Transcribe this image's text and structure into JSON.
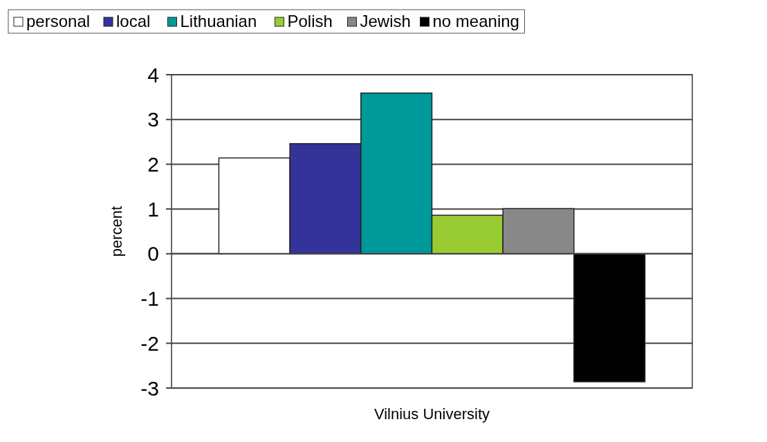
{
  "chart_data": {
    "type": "bar",
    "categories": [
      "Vilnius University"
    ],
    "ylabel": "percent",
    "series": [
      {
        "name": "personal",
        "color": "#ffffff",
        "values": [
          2.14
        ]
      },
      {
        "name": "local",
        "color": "#333399",
        "values": [
          2.46
        ]
      },
      {
        "name": "Lithuanian",
        "color": "#009999",
        "values": [
          3.59
        ]
      },
      {
        "name": "Polish",
        "color": "#99cc33",
        "values": [
          0.86
        ]
      },
      {
        "name": "Jewish",
        "color": "#888888",
        "values": [
          1.01
        ]
      },
      {
        "name": "no meaning",
        "color": "#000000",
        "values": [
          -2.86
        ]
      }
    ],
    "ylim": [
      -3,
      4
    ],
    "yticks": [
      -3,
      -2,
      -1,
      0,
      1,
      2,
      3,
      4
    ],
    "grid": "y",
    "legend": "top"
  }
}
